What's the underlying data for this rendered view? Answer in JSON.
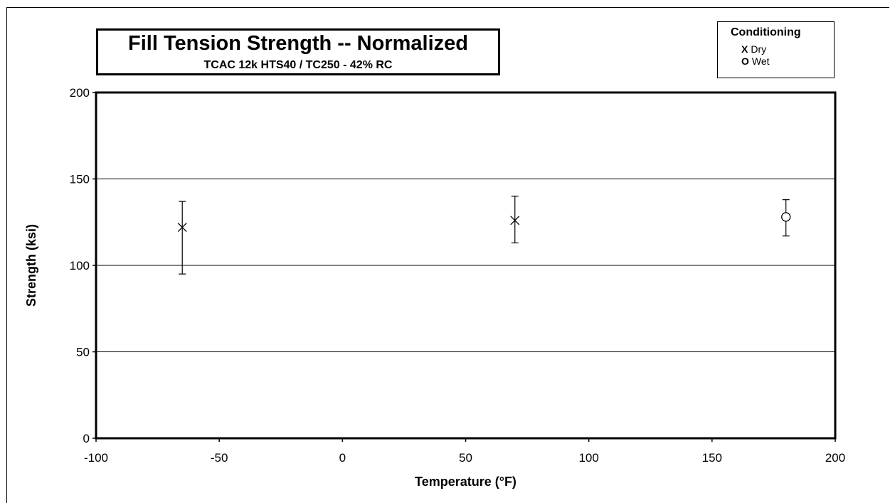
{
  "chart_data": {
    "type": "scatter",
    "title": "Fill Tension Strength -- Normalized",
    "subtitle": "TCAC 12k HTS40 / TC250 - 42% RC",
    "xlabel": "Temperature (°F)",
    "ylabel": "Strength (ksi)",
    "xlim": [
      -100,
      200
    ],
    "ylim": [
      0,
      200
    ],
    "x_ticks": [
      -100,
      -50,
      0,
      50,
      100,
      150,
      200
    ],
    "y_ticks": [
      0,
      50,
      100,
      150,
      200
    ],
    "y_gridlines": [
      50,
      100,
      150
    ],
    "legend_title": "Conditioning",
    "legend_position": "top-right",
    "series": [
      {
        "name": "Dry",
        "marker": "X",
        "points": [
          {
            "x": -65,
            "y": 122,
            "low": 95,
            "high": 137
          },
          {
            "x": 70,
            "y": 126,
            "low": 113,
            "high": 140
          }
        ]
      },
      {
        "name": "Wet",
        "marker": "O",
        "points": [
          {
            "x": 180,
            "y": 128,
            "low": 117,
            "high": 138
          }
        ]
      }
    ]
  }
}
